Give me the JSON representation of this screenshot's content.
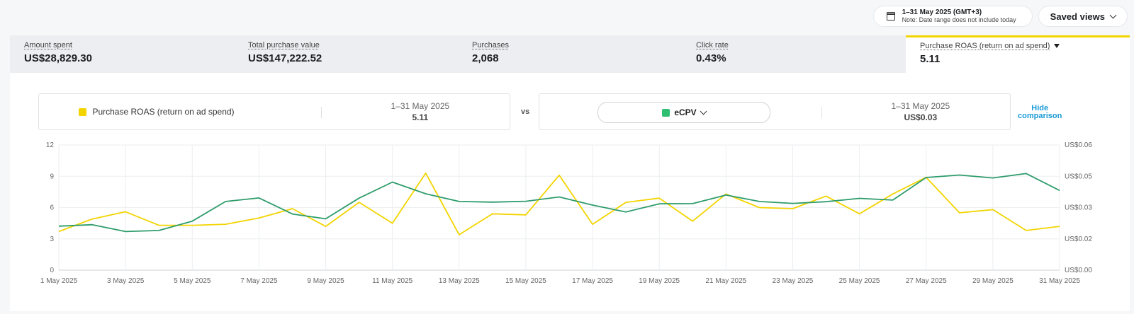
{
  "header": {
    "date_range": "1–31 May 2025 (GMT+3)",
    "date_note": "Note: Date range does not include today",
    "saved_views": "Saved views"
  },
  "metrics": [
    {
      "label": "Amount spent",
      "value": "US$28,829.30"
    },
    {
      "label": "Total purchase value",
      "value": "US$147,222.52"
    },
    {
      "label": "Purchases",
      "value": "2,068"
    },
    {
      "label": "Click rate",
      "value": "0.43%"
    },
    {
      "label": "Purchase ROAS (return on ad spend)",
      "value": "5.11"
    }
  ],
  "comparison": {
    "primary": {
      "metric": "Purchase ROAS (return on ad spend)",
      "range": "1–31 May 2025",
      "value": "5.11",
      "color": "#f3d400"
    },
    "vs": "vs",
    "secondary": {
      "metric": "eCPV",
      "range": "1–31 May 2025",
      "value": "US$0.03",
      "color": "#2fbf71"
    },
    "hide_label_1": "Hide",
    "hide_label_2": "comparison"
  },
  "chart_data": {
    "type": "line",
    "x": [
      "1 May 2025",
      "2 May 2025",
      "3 May 2025",
      "4 May 2025",
      "5 May 2025",
      "6 May 2025",
      "7 May 2025",
      "8 May 2025",
      "9 May 2025",
      "10 May 2025",
      "11 May 2025",
      "12 May 2025",
      "13 May 2025",
      "14 May 2025",
      "15 May 2025",
      "16 May 2025",
      "17 May 2025",
      "18 May 2025",
      "19 May 2025",
      "20 May 2025",
      "21 May 2025",
      "22 May 2025",
      "23 May 2025",
      "24 May 2025",
      "25 May 2025",
      "26 May 2025",
      "27 May 2025",
      "28 May 2025",
      "29 May 2025",
      "30 May 2025",
      "31 May 2025"
    ],
    "x_ticks": [
      "1 May 2025",
      "3 May 2025",
      "5 May 2025",
      "7 May 2025",
      "9 May 2025",
      "11 May 2025",
      "13 May 2025",
      "15 May 2025",
      "17 May 2025",
      "19 May 2025",
      "21 May 2025",
      "23 May 2025",
      "25 May 2025",
      "27 May 2025",
      "29 May 2025",
      "31 May 2025"
    ],
    "y_left_ticks": [
      "0",
      "3",
      "6",
      "9",
      "12"
    ],
    "y_left_lim": [
      0,
      12
    ],
    "y_right_ticks": [
      "US$0.00",
      "US$0.02",
      "US$0.03",
      "US$0.05",
      "US$0.06"
    ],
    "y_right_lim": [
      0,
      0.06
    ],
    "series": [
      {
        "name": "Purchase ROAS (return on ad spend)",
        "axis": "left",
        "color": "#f3d400",
        "values": [
          3.7,
          4.9,
          5.6,
          4.3,
          4.3,
          4.4,
          5.0,
          5.9,
          4.2,
          6.5,
          4.5,
          9.3,
          3.4,
          5.4,
          5.3,
          9.1,
          4.4,
          6.5,
          6.9,
          4.7,
          7.3,
          6.0,
          5.9,
          7.1,
          5.4,
          7.3,
          8.9,
          5.5,
          5.8,
          3.8,
          4.2
        ]
      },
      {
        "name": "eCPV",
        "axis": "right",
        "color": "#2e9c6b",
        "values": [
          0.0211,
          0.0218,
          0.0185,
          0.019,
          0.0235,
          0.0329,
          0.0346,
          0.0269,
          0.0246,
          0.0345,
          0.0422,
          0.0366,
          0.0329,
          0.0326,
          0.033,
          0.0351,
          0.0312,
          0.0279,
          0.0318,
          0.0319,
          0.036,
          0.0329,
          0.032,
          0.0328,
          0.0344,
          0.0336,
          0.0444,
          0.0456,
          0.0442,
          0.0463,
          0.0382
        ]
      }
    ],
    "grid": true
  }
}
